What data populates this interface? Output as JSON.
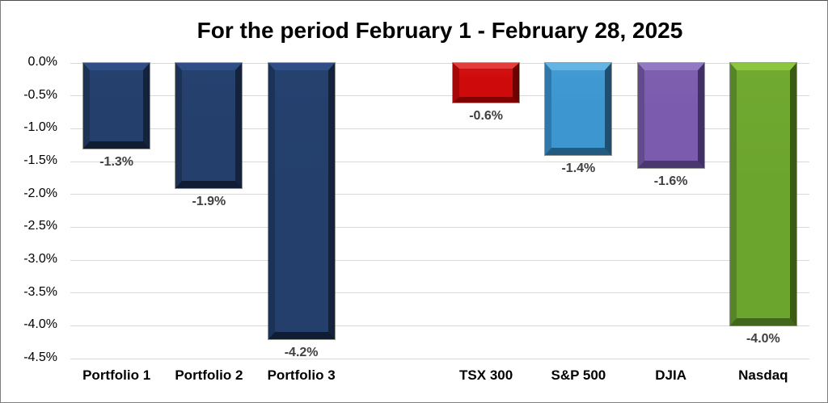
{
  "chart_data": {
    "type": "bar",
    "title": "For the period February 1 - February 28, 2025",
    "xlabel": "",
    "ylabel": "",
    "ylim": [
      -4.5,
      0
    ],
    "grid": true,
    "legend": false,
    "yticks": [
      "0.0%",
      "-0.5%",
      "-1.0%",
      "-1.5%",
      "-2.0%",
      "-2.5%",
      "-3.0%",
      "-3.5%",
      "-4.0%",
      "-4.5%"
    ],
    "categories": [
      "Portfolio 1",
      "Portfolio 2",
      "Portfolio 3",
      "",
      "TSX 300",
      "S&P 500",
      "DJIA",
      "Nasdaq"
    ],
    "values": [
      -1.3,
      -1.9,
      -4.2,
      null,
      -0.6,
      -1.4,
      -1.6,
      -4.0
    ],
    "value_labels": [
      "-1.3%",
      "-1.9%",
      "-4.2%",
      "",
      "-0.6%",
      "-1.4%",
      "-1.6%",
      "-4.0%"
    ],
    "bar_colors": [
      {
        "face": "#243F6B",
        "top": "#2F4E85",
        "left": "#1C3256",
        "right": "#14223C",
        "bottom": "#101C33"
      },
      {
        "face": "#243F6B",
        "top": "#2F4E85",
        "left": "#1C3256",
        "right": "#14223C",
        "bottom": "#101C33"
      },
      {
        "face": "#243F6B",
        "top": "#2F4E85",
        "left": "#1C3256",
        "right": "#14223C",
        "bottom": "#101C33"
      },
      null,
      {
        "face": "#CE0A0A",
        "top": "#E43D3D",
        "left": "#A40808",
        "right": "#6E0000",
        "bottom": "#800202"
      },
      {
        "face": "#3D96D0",
        "top": "#64B4E4",
        "left": "#2F78A9",
        "right": "#1E4E70",
        "bottom": "#235A80"
      },
      {
        "face": "#7A5BAD",
        "top": "#9379C4",
        "left": "#634A8E",
        "right": "#413064",
        "bottom": "#4A3771"
      },
      {
        "face": "#6CA52E",
        "top": "#8CC63F",
        "left": "#568526",
        "right": "#3A5A16",
        "bottom": "#42671A"
      }
    ]
  },
  "colors": {
    "background": "#FFFFFF",
    "border": "#7F7F7F",
    "grid": "#D9D9D9",
    "title_text": "#000000",
    "axis_tick_text": "#000000",
    "category_text": "#000000",
    "value_label_text": "#404040"
  }
}
